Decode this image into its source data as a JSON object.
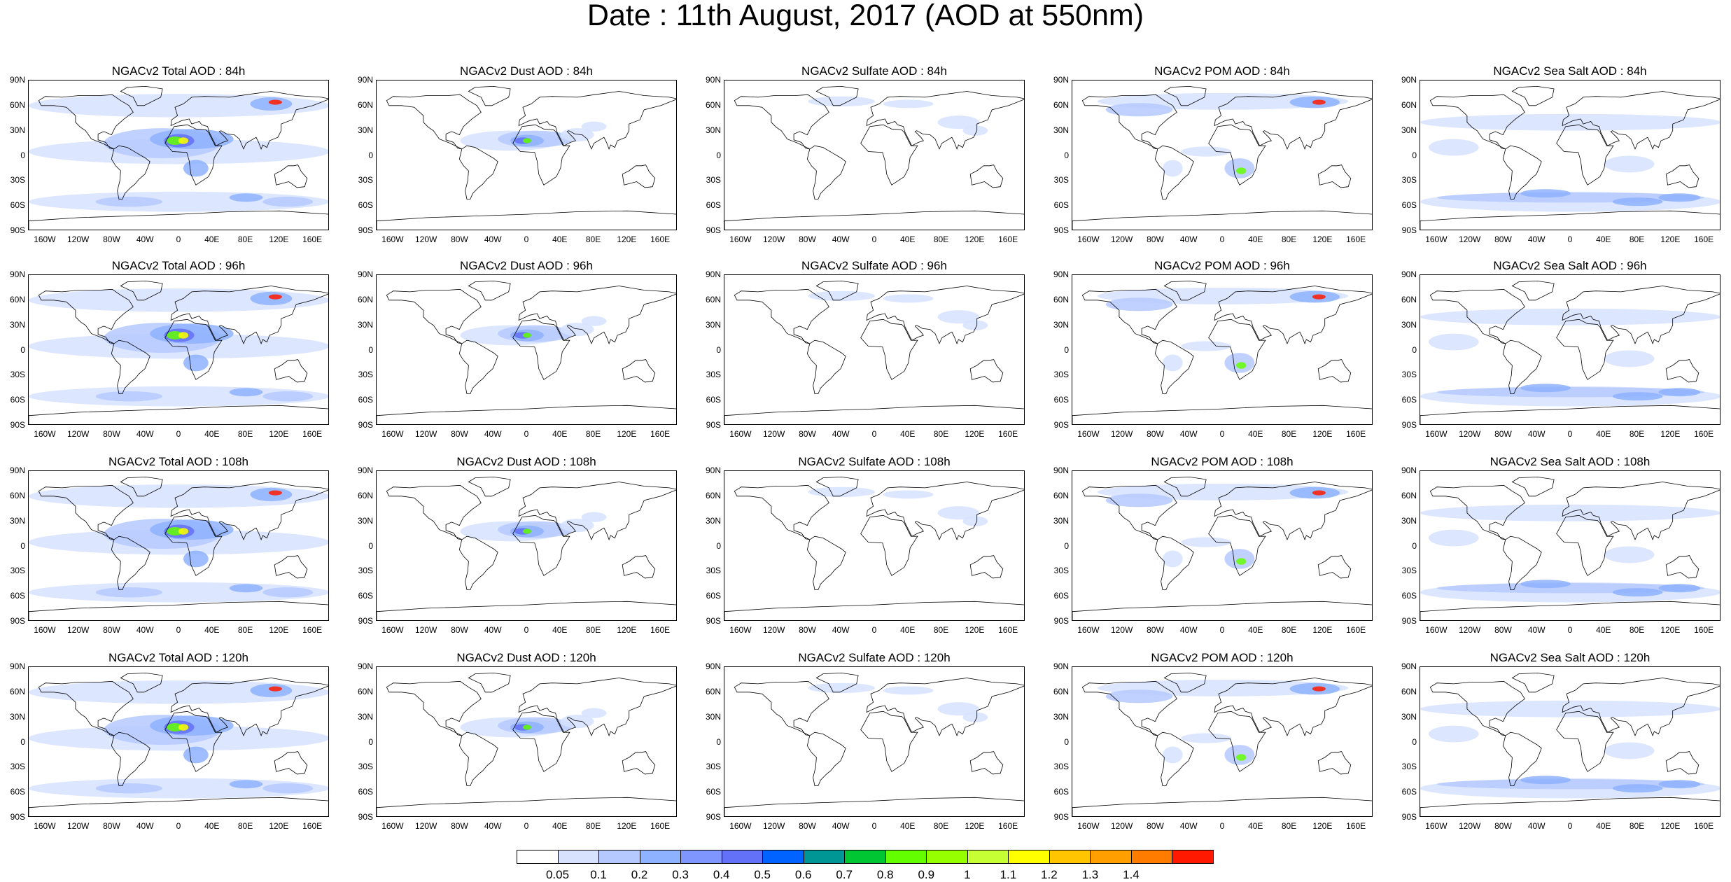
{
  "title": "Date : 11th August, 2017 (AOD at 550nm)",
  "lat_labels": [
    "90N",
    "60N",
    "30N",
    "0",
    "30S",
    "60S",
    "90S"
  ],
  "lon_labels": [
    "160W",
    "120W",
    "80W",
    "40W",
    "0",
    "40E",
    "80E",
    "120E",
    "160E"
  ],
  "species": [
    {
      "key": "total",
      "name": "Total"
    },
    {
      "key": "dust",
      "name": "Dust"
    },
    {
      "key": "sulfate",
      "name": "Sulfate"
    },
    {
      "key": "pom",
      "name": "POM"
    },
    {
      "key": "seasalt",
      "name": "Sea Salt"
    }
  ],
  "hours": [
    "84h",
    "96h",
    "108h",
    "120h"
  ],
  "panel_titles": [
    [
      "NGACv2 Total AOD : 84h",
      "NGACv2 Dust AOD : 84h",
      "NGACv2 Sulfate AOD : 84h",
      "NGACv2 POM AOD : 84h",
      "NGACv2 Sea Salt AOD : 84h"
    ],
    [
      "NGACv2 Total AOD : 96h",
      "NGACv2 Dust AOD : 96h",
      "NGACv2 Sulfate AOD : 96h",
      "NGACv2 POM AOD : 96h",
      "NGACv2 Sea Salt AOD : 96h"
    ],
    [
      "NGACv2 Total AOD : 108h",
      "NGACv2 Dust AOD : 108h",
      "NGACv2 Sulfate AOD : 108h",
      "NGACv2 POM AOD : 108h",
      "NGACv2 Sea Salt AOD : 108h"
    ],
    [
      "NGACv2 Total AOD : 120h",
      "NGACv2 Dust AOD : 120h",
      "NGACv2 Sulfate AOD : 120h",
      "NGACv2 POM AOD : 120h",
      "NGACv2 Sea Salt  AOD : 120h"
    ]
  ],
  "colorbar": {
    "levels": [
      "0.05",
      "0.1",
      "0.2",
      "0.3",
      "0.4",
      "0.5",
      "0.6",
      "0.7",
      "0.8",
      "0.9",
      "1",
      "1.1",
      "1.2",
      "1.3",
      "1.4"
    ],
    "colors": [
      "#ffffff",
      "#d6e2ff",
      "#b5c9ff",
      "#8eb2ff",
      "#7f96ff",
      "#6370f8",
      "#0063ff",
      "#009696",
      "#00c633",
      "#63ff00",
      "#96ff00",
      "#c6ff33",
      "#ffff00",
      "#ffc600",
      "#ffa000",
      "#ff7c00",
      "#ff1900"
    ]
  },
  "colors": {
    "land_outline": "#000000",
    "low": "#d6e2ff",
    "mid": "#8eb2ff",
    "high": "#ffff00",
    "max": "#ff1900"
  }
}
